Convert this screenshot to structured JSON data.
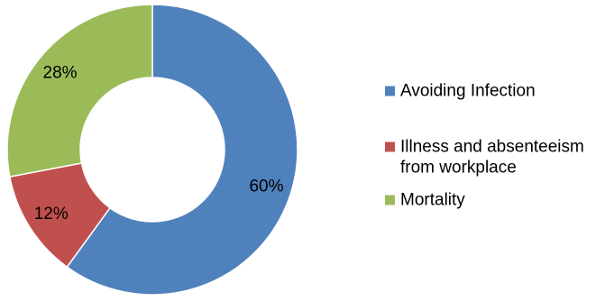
{
  "chart_data": {
    "type": "pie",
    "variant": "donut",
    "slices": [
      {
        "label": "Avoiding Infection",
        "value": 60,
        "value_label": "60%",
        "color": "#4f81bd"
      },
      {
        "label": "Illness and absenteeism from workplace",
        "legend_lines": [
          "Illness and absenteeism",
          "from workplace"
        ],
        "value": 12,
        "value_label": "12%",
        "color": "#c0504d"
      },
      {
        "label": "Mortality",
        "value": 28,
        "value_label": "28%",
        "color": "#9bbb59"
      }
    ],
    "legend_position": "right",
    "title": ""
  }
}
